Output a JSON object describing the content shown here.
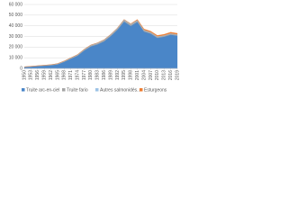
{
  "chart_data": {
    "type": "stacked-area",
    "x": [
      1950,
      1953,
      1956,
      1959,
      1962,
      1965,
      1968,
      1971,
      1974,
      1977,
      1980,
      1983,
      1986,
      1989,
      1992,
      1995,
      1998,
      2001,
      2004,
      2007,
      2010,
      2013,
      2016,
      2019
    ],
    "xticks": [
      1950,
      1953,
      1956,
      1959,
      1962,
      1965,
      1968,
      1971,
      1974,
      1977,
      1980,
      1983,
      1986,
      1989,
      1992,
      1995,
      1998,
      2001,
      2004,
      2007,
      2010,
      2013,
      2016,
      2019
    ],
    "xlim": [
      1950,
      2019
    ],
    "ylim": [
      0,
      60000
    ],
    "yticks": [
      0,
      {
        "value": 10000,
        "label": "10 000"
      },
      {
        "value": 20000,
        "label": "20 000"
      },
      {
        "value": 30000,
        "label": "30 000"
      },
      {
        "value": 40000,
        "label": "40 000"
      },
      {
        "value": 50000,
        "label": "50 000"
      },
      {
        "value": 60000,
        "label": "60 000"
      }
    ],
    "grid": true,
    "legend": "bottom",
    "series": [
      {
        "name": "Truite arc-en-ciel",
        "color": "#4a86c8",
        "values": [
          1200,
          1600,
          2100,
          2500,
          3000,
          3800,
          6200,
          9100,
          11900,
          16800,
          20700,
          22600,
          25500,
          30400,
          36300,
          44100,
          39900,
          43700,
          34700,
          32700,
          28700,
          29800,
          31700,
          30700
        ]
      },
      {
        "name": "Truite fario",
        "color": "#a5a5a5",
        "values": [
          200,
          300,
          300,
          400,
          400,
          500,
          600,
          700,
          800,
          900,
          1000,
          1000,
          1100,
          1200,
          1200,
          1300,
          1300,
          1200,
          1100,
          1000,
          1000,
          900,
          900,
          900
        ]
      },
      {
        "name": "Autres salmonidés...",
        "color": "#9dc3e6",
        "values": [
          100,
          100,
          100,
          100,
          100,
          200,
          200,
          200,
          300,
          300,
          300,
          400,
          400,
          400,
          500,
          500,
          500,
          500,
          400,
          400,
          400,
          400,
          400,
          400
        ]
      },
      {
        "name": "Esturgeons",
        "color": "#ed7d31",
        "values": [
          0,
          0,
          0,
          0,
          0,
          0,
          0,
          0,
          0,
          0,
          0,
          0,
          0,
          0,
          0,
          100,
          300,
          600,
          800,
          900,
          900,
          900,
          1000,
          1000
        ]
      }
    ]
  }
}
